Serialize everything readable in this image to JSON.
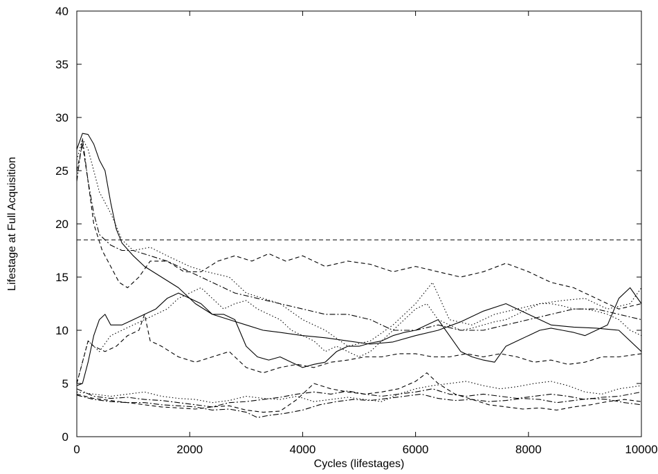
{
  "chart_data": {
    "type": "line",
    "title": "",
    "xlabel": "Cycles (lifestages)",
    "ylabel": "Lifestage at Full Acquisition",
    "xlim": [
      0,
      10000
    ],
    "ylim": [
      0,
      40
    ],
    "xticks": [
      0,
      2000,
      4000,
      6000,
      8000,
      10000
    ],
    "yticks": [
      0,
      5,
      10,
      15,
      20,
      25,
      30,
      35,
      40
    ],
    "grid": false,
    "legend": "none",
    "reference_line": {
      "y": 18.5,
      "style": "dashed"
    },
    "series": [
      {
        "style": "solid",
        "x": [
          0,
          100,
          200,
          300,
          400,
          500,
          600,
          700,
          800,
          1000,
          1200,
          1500,
          1800,
          2100,
          2400,
          2700,
          3000,
          3300,
          3600,
          4000,
          4400,
          4800,
          5200,
          5600,
          6000,
          6400,
          6800,
          7200,
          7600,
          8000,
          8400,
          8800,
          9200,
          9600,
          10000
        ],
        "y": [
          27,
          28.5,
          28.4,
          27.5,
          26,
          25,
          22,
          19.5,
          18.2,
          17,
          16,
          15,
          14,
          12.5,
          11.5,
          11,
          10.5,
          10,
          9.8,
          9.5,
          9.3,
          9,
          8.7,
          8.9,
          9.5,
          10,
          10.8,
          11.8,
          12.5,
          11.5,
          10.5,
          10.3,
          10.2,
          10,
          8
        ]
      },
      {
        "style": "dotted",
        "x": [
          0,
          100,
          200,
          300,
          400,
          600,
          800,
          1000,
          1300,
          1600,
          2000,
          2300,
          2700,
          3000,
          3300,
          3600,
          4000,
          4400,
          4800,
          5200,
          5600,
          6000,
          6300,
          6600,
          7000,
          7400,
          7800,
          8200,
          8600,
          9000,
          9400,
          9800,
          10000
        ],
        "y": [
          26,
          28,
          27,
          25,
          23,
          21,
          18.5,
          17.5,
          17.8,
          17,
          16,
          15.5,
          15,
          13.5,
          13,
          12.5,
          11,
          10,
          8.5,
          9,
          10.5,
          12.5,
          14.5,
          11,
          10.5,
          11.5,
          12,
          12.5,
          12.8,
          13,
          12,
          12.5,
          14
        ]
      },
      {
        "style": "dashed",
        "x": [
          0,
          100,
          200,
          300,
          450,
          600,
          750,
          900,
          1100,
          1300,
          1600,
          1900,
          2200,
          2500,
          2800,
          3100,
          3400,
          3700,
          4000,
          4400,
          4800,
          5200,
          5600,
          6000,
          6400,
          6800,
          7200,
          7600,
          8000,
          8400,
          8800,
          9200,
          9600,
          10000
        ],
        "y": [
          25,
          27.5,
          24,
          20,
          17.5,
          16,
          14.5,
          14,
          15,
          16.5,
          16.5,
          15.5,
          15.5,
          16.5,
          17,
          16.5,
          17.2,
          16.5,
          17,
          16,
          16.5,
          16.2,
          15.5,
          16,
          15.5,
          15,
          15.5,
          16.3,
          15.5,
          14.5,
          14,
          13,
          12,
          12.5
        ]
      },
      {
        "style": "dashdot",
        "x": [
          0,
          100,
          200,
          300,
          400,
          600,
          800,
          1000,
          1300,
          1600,
          2000,
          2400,
          2800,
          3200,
          3600,
          4000,
          4400,
          4800,
          5200,
          5600,
          6000,
          6400,
          6800,
          7200,
          7600,
          8000,
          8400,
          8800,
          9200,
          9600,
          10000
        ],
        "y": [
          24,
          28,
          24,
          21,
          19,
          18,
          17.5,
          17.5,
          17,
          16.5,
          15.5,
          14.5,
          13.5,
          13,
          12.5,
          12,
          11.5,
          11.5,
          11,
          10,
          10,
          10.5,
          10,
          10,
          10.5,
          11,
          11.5,
          12,
          12,
          11.5,
          11
        ]
      },
      {
        "style": "solid",
        "x": [
          0,
          100,
          200,
          300,
          400,
          500,
          600,
          800,
          1000,
          1200,
          1400,
          1600,
          1800,
          2000,
          2200,
          2400,
          2600,
          2800,
          3000,
          3200,
          3400,
          3600,
          3800,
          4000,
          4200,
          4400,
          4600,
          4800,
          5000,
          5200,
          5400,
          5600,
          5800,
          6000,
          6200,
          6400,
          6600,
          6800,
          7000,
          7200,
          7400,
          7600,
          7800,
          8000,
          8200,
          8400,
          8600,
          8800,
          9000,
          9200,
          9400,
          9600,
          9800,
          10000
        ],
        "y": [
          4.8,
          5,
          7,
          9.5,
          11,
          11.5,
          10.5,
          10.5,
          11,
          11.5,
          12,
          13,
          13.5,
          13,
          12.5,
          11.5,
          11.5,
          11,
          8.5,
          7.5,
          7.2,
          7.5,
          7,
          6.5,
          6.8,
          7,
          8,
          8.5,
          8.5,
          8.8,
          9,
          9.5,
          9.8,
          10,
          10.5,
          11,
          9.5,
          8,
          7.5,
          7.2,
          7,
          8.5,
          9,
          9.5,
          10,
          10.2,
          10,
          9.8,
          9.5,
          10,
          10.5,
          13,
          14,
          12.5
        ]
      },
      {
        "style": "dotted",
        "x": [
          0,
          200,
          400,
          600,
          800,
          1000,
          1200,
          1400,
          1600,
          1800,
          2000,
          2200,
          2400,
          2600,
          2800,
          3000,
          3200,
          3400,
          3600,
          3800,
          4000,
          4200,
          4400,
          4600,
          4800,
          5000,
          5200,
          5400,
          5600,
          5800,
          6000,
          6200,
          6400,
          6600,
          6800,
          7000,
          7200,
          7400,
          7600,
          7800,
          8000,
          8200,
          8400,
          8600,
          8800,
          9000,
          9200,
          9400,
          9600,
          9800,
          10000
        ],
        "y": [
          5,
          9,
          8,
          9.5,
          10,
          10.5,
          11,
          11.5,
          12,
          13,
          13.5,
          14,
          13,
          12,
          12.5,
          12.8,
          12,
          11.5,
          11,
          10,
          9.5,
          9,
          8,
          8.5,
          8,
          7.5,
          8,
          9,
          10,
          11,
          12,
          12.5,
          11,
          10.5,
          10,
          10.2,
          10.5,
          10.8,
          11,
          11.5,
          12,
          12.5,
          12.5,
          12.3,
          12,
          12,
          11.8,
          11.5,
          11,
          10,
          9.5
        ]
      },
      {
        "style": "dashed",
        "x": [
          0,
          100,
          200,
          300,
          500,
          700,
          900,
          1100,
          1200,
          1300,
          1500,
          1800,
          2100,
          2400,
          2700,
          3000,
          3300,
          3600,
          3900,
          4200,
          4500,
          4800,
          5100,
          5400,
          5700,
          6000,
          6300,
          6600,
          6900,
          7200,
          7500,
          7800,
          8100,
          8400,
          8700,
          9000,
          9300,
          9600,
          10000
        ],
        "y": [
          5,
          7,
          9,
          8.5,
          8,
          8.5,
          9.5,
          10,
          11.5,
          9,
          8.5,
          7.5,
          7,
          7.5,
          8,
          6.5,
          6,
          6.5,
          6.8,
          6.5,
          7,
          7.2,
          7.5,
          7.5,
          7.8,
          7.8,
          7.5,
          7.5,
          7.8,
          7.5,
          7.8,
          7.5,
          7,
          7.2,
          6.8,
          7,
          7.5,
          7.5,
          7.8
        ]
      },
      {
        "style": "dashdot",
        "x": [
          0,
          300,
          600,
          900,
          1200,
          1500,
          1800,
          2100,
          2400,
          2700,
          3000,
          3300,
          3600,
          3900,
          4200,
          4500,
          4800,
          5100,
          5400,
          5700,
          6000,
          6300,
          6600,
          6900,
          7200,
          7500,
          7800,
          8100,
          8400,
          8700,
          9000,
          9300,
          9600,
          10000
        ],
        "y": [
          4.5,
          3.8,
          3.6,
          3.7,
          3.5,
          3.4,
          3.2,
          3,
          2.8,
          3.2,
          3.3,
          3.5,
          3.7,
          4,
          4.2,
          4,
          4.3,
          4,
          3.8,
          4,
          4.2,
          4.5,
          4,
          3.8,
          4,
          3.8,
          3.6,
          3.8,
          4,
          3.8,
          3.5,
          3.7,
          3.8,
          4.2
        ]
      },
      {
        "style": "dotted",
        "x": [
          0,
          300,
          600,
          900,
          1200,
          1500,
          1800,
          2100,
          2400,
          2700,
          3000,
          3300,
          3600,
          3900,
          4200,
          4500,
          4800,
          5100,
          5400,
          5700,
          6000,
          6300,
          6600,
          6900,
          7200,
          7500,
          7800,
          8100,
          8400,
          8700,
          9000,
          9300,
          9600,
          10000
        ],
        "y": [
          4.2,
          4,
          3.8,
          4,
          4.2,
          3.8,
          3.6,
          3.5,
          3.2,
          3.4,
          3.8,
          3.6,
          3.5,
          3.8,
          3.3,
          3.5,
          3.7,
          3.5,
          3.3,
          4,
          4.5,
          4.8,
          5,
          5.2,
          4.8,
          4.5,
          4.7,
          5,
          5.2,
          4.8,
          4.2,
          4,
          4.5,
          4.8
        ]
      },
      {
        "style": "dashed",
        "x": [
          0,
          300,
          600,
          900,
          1200,
          1500,
          1800,
          2100,
          2400,
          2700,
          3000,
          3300,
          3600,
          3900,
          4200,
          4500,
          4800,
          5100,
          5400,
          5700,
          6000,
          6200,
          6400,
          6700,
          7000,
          7300,
          7600,
          7900,
          8200,
          8500,
          8800,
          9100,
          9400,
          9700,
          10000
        ],
        "y": [
          4,
          3.6,
          3.4,
          3.2,
          3,
          2.8,
          2.7,
          2.6,
          2.8,
          2.9,
          2.5,
          2.3,
          2.4,
          3.5,
          5,
          4.5,
          4.2,
          4,
          4.2,
          4.5,
          5.2,
          6,
          5,
          4,
          3.5,
          3,
          2.8,
          2.6,
          2.7,
          2.5,
          2.8,
          3,
          3.3,
          3.5,
          3.3
        ]
      },
      {
        "style": "dashdot",
        "x": [
          0,
          300,
          600,
          900,
          1200,
          1500,
          1800,
          2100,
          2400,
          2700,
          3000,
          3200,
          3400,
          3700,
          4000,
          4300,
          4600,
          4900,
          5200,
          5500,
          5800,
          6100,
          6400,
          6700,
          7000,
          7300,
          7600,
          7900,
          8200,
          8500,
          8800,
          9100,
          9400,
          9700,
          10000
        ],
        "y": [
          3.9,
          3.5,
          3.3,
          3.2,
          3.2,
          3,
          2.9,
          2.8,
          2.5,
          2.6,
          2.3,
          1.8,
          2,
          2.2,
          2.5,
          3,
          3.3,
          3.5,
          3.4,
          3.6,
          3.8,
          4,
          3.6,
          3.4,
          3.5,
          3.3,
          3.4,
          3.6,
          3.5,
          3.2,
          3.4,
          3.6,
          3.5,
          3.2,
          3
        ]
      }
    ]
  }
}
